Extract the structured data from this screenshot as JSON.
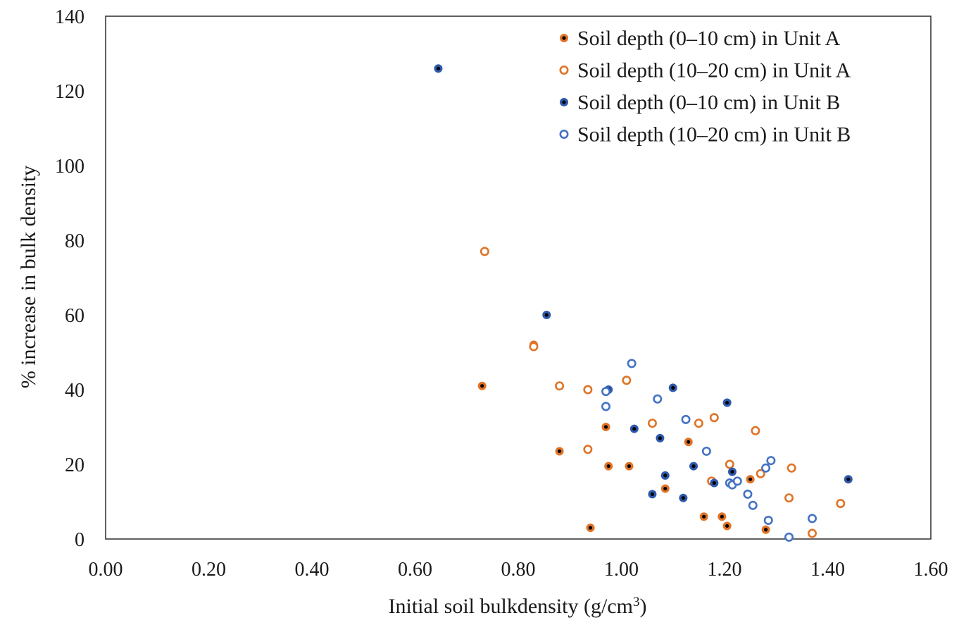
{
  "chart_data": {
    "type": "scatter",
    "title": "",
    "xlabel": "Initial soil bulkdensity  (g/cm",
    "xlabel_sup": "3",
    "xlabel_end": ")",
    "ylabel": "% increase in bulk density",
    "xlim": [
      0,
      1.6
    ],
    "ylim": [
      0,
      140
    ],
    "x_ticks": [
      "0.00",
      "0.20",
      "0.40",
      "0.60",
      "0.80",
      "1.00",
      "1.20",
      "1.40",
      "1.60"
    ],
    "y_ticks": [
      "0",
      "20",
      "40",
      "60",
      "80",
      "100",
      "120",
      "140"
    ],
    "grid": false,
    "legend_position": "top-right",
    "series": [
      {
        "name": "Soil depth (0–10 cm) in Unit A",
        "color": "#E07327",
        "marker": "filled",
        "points": [
          [
            0.73,
            41
          ],
          [
            0.83,
            52
          ],
          [
            0.88,
            23.5
          ],
          [
            0.94,
            3
          ],
          [
            0.97,
            30
          ],
          [
            0.975,
            19.5
          ],
          [
            1.015,
            19.5
          ],
          [
            1.085,
            13.5
          ],
          [
            1.13,
            26
          ],
          [
            1.16,
            6
          ],
          [
            1.195,
            6
          ],
          [
            1.205,
            3.5
          ],
          [
            1.25,
            16
          ],
          [
            1.28,
            2.5
          ]
        ]
      },
      {
        "name": "Soil depth (10–20 cm) in Unit A",
        "color": "#E07327",
        "marker": "hollow",
        "points": [
          [
            0.735,
            77
          ],
          [
            0.83,
            51.5
          ],
          [
            0.88,
            41
          ],
          [
            0.935,
            40
          ],
          [
            0.935,
            24
          ],
          [
            1.01,
            42.5
          ],
          [
            1.06,
            31
          ],
          [
            1.15,
            31
          ],
          [
            1.175,
            15.5
          ],
          [
            1.18,
            32.5
          ],
          [
            1.21,
            20
          ],
          [
            1.26,
            29
          ],
          [
            1.27,
            17.5
          ],
          [
            1.325,
            11
          ],
          [
            1.33,
            19
          ],
          [
            1.37,
            1.5
          ],
          [
            1.425,
            9.5
          ]
        ]
      },
      {
        "name": "Soil depth (0–10 cm) in Unit B",
        "color": "#2E5AAC",
        "marker": "filled",
        "points": [
          [
            0.645,
            126
          ],
          [
            0.855,
            60
          ],
          [
            0.975,
            40
          ],
          [
            1.025,
            29.5
          ],
          [
            1.06,
            12
          ],
          [
            1.075,
            27
          ],
          [
            1.085,
            17
          ],
          [
            1.1,
            40.5
          ],
          [
            1.12,
            11
          ],
          [
            1.14,
            19.5
          ],
          [
            1.18,
            15
          ],
          [
            1.205,
            36.5
          ],
          [
            1.215,
            18
          ],
          [
            1.44,
            16
          ]
        ]
      },
      {
        "name": "Soil depth (10–20 cm) in Unit B",
        "color": "#4472C4",
        "marker": "hollow",
        "points": [
          [
            0.97,
            39.5
          ],
          [
            0.97,
            35.5
          ],
          [
            1.02,
            47
          ],
          [
            1.07,
            37.5
          ],
          [
            1.125,
            32
          ],
          [
            1.165,
            23.5
          ],
          [
            1.21,
            15
          ],
          [
            1.215,
            14.5
          ],
          [
            1.225,
            15.5
          ],
          [
            1.245,
            12
          ],
          [
            1.255,
            9
          ],
          [
            1.28,
            19
          ],
          [
            1.285,
            5
          ],
          [
            1.29,
            21
          ],
          [
            1.325,
            0.5
          ],
          [
            1.37,
            5.5
          ]
        ]
      }
    ]
  }
}
